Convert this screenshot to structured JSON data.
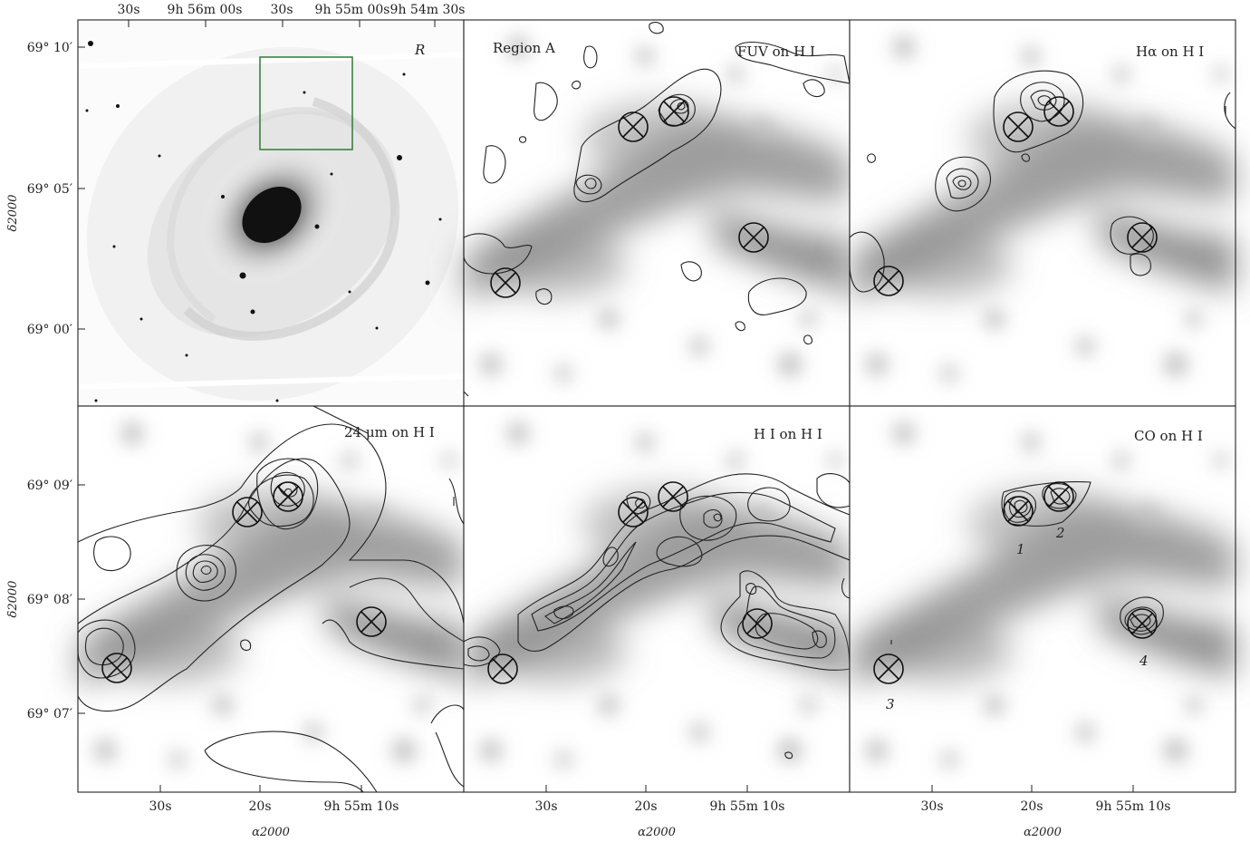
{
  "figure": {
    "top_ra_ticks": [
      "30s",
      "9h 56m 00s",
      "30s",
      "9h 55m 00s",
      "9h 54m 30s"
    ],
    "left_dec_ticks_top": [
      "69° 10′",
      "69° 05′",
      "69° 00′"
    ],
    "left_dec_ticks_bottom": [
      "69° 09′",
      "69° 08′",
      "69° 07′"
    ],
    "ylabel": "δ2000",
    "xlabel": "α2000",
    "bottom_ra_ticks": [
      "30s",
      "20s",
      "9h 55m 10s"
    ]
  },
  "panels": [
    {
      "id": "r-band",
      "label": "R",
      "sublabel": ""
    },
    {
      "id": "fuv",
      "label": "FUV on H I",
      "sublabel": "Region A"
    },
    {
      "id": "halpha",
      "label": "Hα on H I",
      "sublabel": ""
    },
    {
      "id": "mips24",
      "label": "24 μm on H I",
      "sublabel": ""
    },
    {
      "id": "hi",
      "label": "H I on H I",
      "sublabel": ""
    },
    {
      "id": "co",
      "label": "CO on H I",
      "sublabel": ""
    }
  ],
  "co_sources": [
    "1",
    "2",
    "3",
    "4"
  ],
  "colors": {
    "frame": "#222222",
    "region_box": "#2e7d32",
    "hi_greyscale": "#7a7a7a"
  }
}
